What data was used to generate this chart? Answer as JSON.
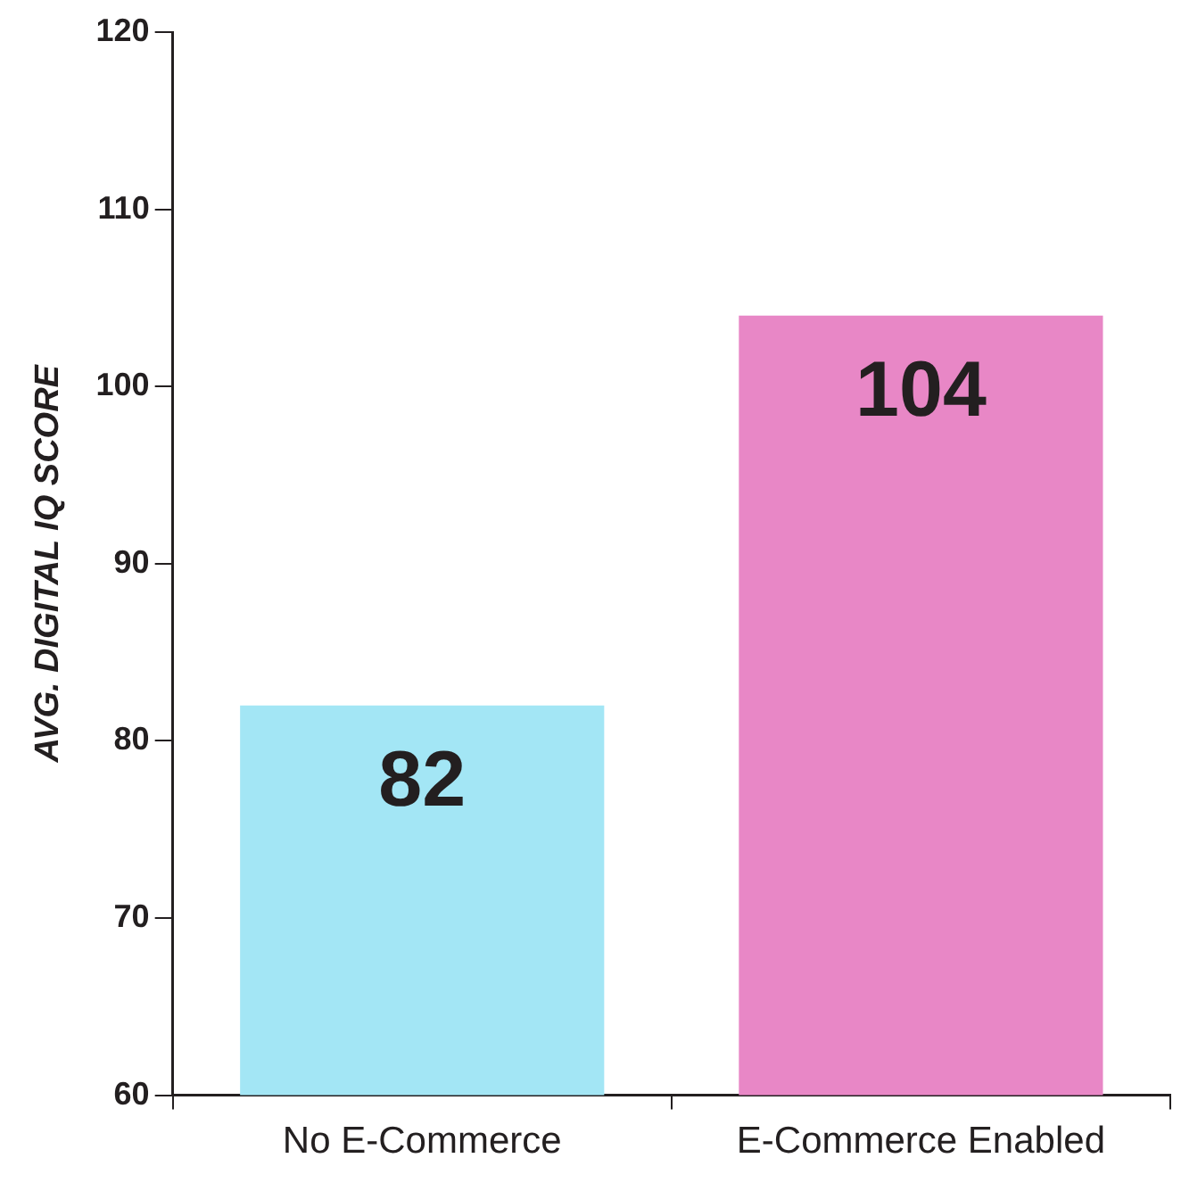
{
  "chart_data": {
    "type": "bar",
    "ylabel": "AVG. DIGITAL IQ SCORE",
    "categories": [
      "No E-Commerce",
      "E-Commerce Enabled"
    ],
    "values": [
      82,
      104
    ],
    "colors": [
      "#a3e6f5",
      "#e887c6"
    ],
    "ylim": [
      60,
      120
    ],
    "yticks": [
      60,
      70,
      80,
      90,
      100,
      110,
      120
    ],
    "grid": false,
    "legend": false,
    "data_labels": true
  }
}
